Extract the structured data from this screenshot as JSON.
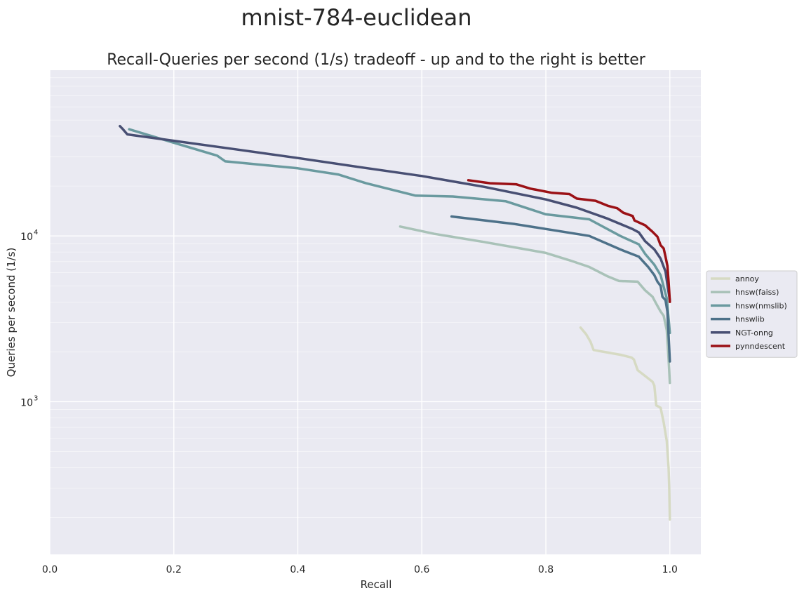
{
  "chart_data": {
    "type": "line",
    "suptitle": "mnist-784-euclidean",
    "title": "Recall-Queries per second (1/s) tradeoff - up and to the right is better",
    "xlabel": "Recall",
    "ylabel": "Queries per second (1/s)",
    "xlim": [
      0.0,
      1.05
    ],
    "ylim": [
      120,
      100000
    ],
    "yscale": "log",
    "xticks": [
      "0.0",
      "0.2",
      "0.4",
      "0.6",
      "0.8",
      "1.0"
    ],
    "yticks": [
      {
        "base": "10",
        "exp": "3",
        "value": 1000
      },
      {
        "base": "10",
        "exp": "4",
        "value": 10000
      }
    ],
    "grid": true,
    "legend_position": "right",
    "series": [
      {
        "name": "annoy",
        "color": "#d6dac3",
        "points": [
          [
            0.856,
            2800
          ],
          [
            0.865,
            2550
          ],
          [
            0.872,
            2300
          ],
          [
            0.877,
            2050
          ],
          [
            0.9,
            1980
          ],
          [
            0.92,
            1920
          ],
          [
            0.938,
            1850
          ],
          [
            0.942,
            1800
          ],
          [
            0.948,
            1550
          ],
          [
            0.96,
            1430
          ],
          [
            0.972,
            1320
          ],
          [
            0.975,
            1250
          ],
          [
            0.978,
            950
          ],
          [
            0.985,
            920
          ],
          [
            0.99,
            750
          ],
          [
            0.995,
            580
          ],
          [
            0.998,
            400
          ],
          [
            0.999,
            300
          ],
          [
            1.0,
            195
          ]
        ]
      },
      {
        "name": "hnsw(faiss)",
        "color": "#a9c2b8",
        "points": [
          [
            0.565,
            11400
          ],
          [
            0.62,
            10300
          ],
          [
            0.7,
            9200
          ],
          [
            0.76,
            8400
          ],
          [
            0.8,
            7900
          ],
          [
            0.84,
            7100
          ],
          [
            0.87,
            6500
          ],
          [
            0.9,
            5700
          ],
          [
            0.918,
            5350
          ],
          [
            0.948,
            5300
          ],
          [
            0.96,
            4700
          ],
          [
            0.972,
            4300
          ],
          [
            0.978,
            3900
          ],
          [
            0.985,
            3500
          ],
          [
            0.99,
            3300
          ],
          [
            0.995,
            2700
          ],
          [
            0.998,
            1800
          ],
          [
            1.0,
            1300
          ]
        ]
      },
      {
        "name": "hnsw(nmslib)",
        "color": "#6a9a9f",
        "points": [
          [
            0.128,
            44000
          ],
          [
            0.2,
            36500
          ],
          [
            0.27,
            30500
          ],
          [
            0.283,
            28200
          ],
          [
            0.4,
            25600
          ],
          [
            0.465,
            23500
          ],
          [
            0.51,
            20800
          ],
          [
            0.59,
            17500
          ],
          [
            0.65,
            17300
          ],
          [
            0.735,
            16200
          ],
          [
            0.8,
            13500
          ],
          [
            0.87,
            12600
          ],
          [
            0.92,
            10000
          ],
          [
            0.95,
            8900
          ],
          [
            0.96,
            7800
          ],
          [
            0.975,
            6700
          ],
          [
            0.985,
            5800
          ],
          [
            0.995,
            4200
          ],
          [
            1.0,
            2600
          ]
        ]
      },
      {
        "name": "hnswlib",
        "color": "#4d7189",
        "points": [
          [
            0.648,
            13100
          ],
          [
            0.75,
            11800
          ],
          [
            0.87,
            10000
          ],
          [
            0.92,
            8300
          ],
          [
            0.95,
            7500
          ],
          [
            0.965,
            6500
          ],
          [
            0.975,
            5800
          ],
          [
            0.98,
            5300
          ],
          [
            0.985,
            5000
          ],
          [
            0.988,
            4300
          ],
          [
            0.993,
            4100
          ],
          [
            0.996,
            3500
          ],
          [
            1.0,
            1750
          ]
        ]
      },
      {
        "name": "NGT-onng",
        "color": "#484f73",
        "points": [
          [
            0.113,
            46000
          ],
          [
            0.118,
            44000
          ],
          [
            0.125,
            41000
          ],
          [
            0.2,
            37500
          ],
          [
            0.3,
            33300
          ],
          [
            0.4,
            29500
          ],
          [
            0.5,
            26000
          ],
          [
            0.6,
            23000
          ],
          [
            0.7,
            19800
          ],
          [
            0.8,
            16600
          ],
          [
            0.85,
            14800
          ],
          [
            0.9,
            12700
          ],
          [
            0.94,
            11000
          ],
          [
            0.95,
            10500
          ],
          [
            0.96,
            9300
          ],
          [
            0.975,
            8300
          ],
          [
            0.985,
            7300
          ],
          [
            0.993,
            6100
          ],
          [
            0.997,
            4800
          ],
          [
            1.0,
            4100
          ]
        ]
      },
      {
        "name": "pynndescent",
        "color": "#9b1116",
        "points": [
          [
            0.675,
            21700
          ],
          [
            0.71,
            20800
          ],
          [
            0.752,
            20500
          ],
          [
            0.775,
            19300
          ],
          [
            0.81,
            18200
          ],
          [
            0.838,
            17900
          ],
          [
            0.85,
            16800
          ],
          [
            0.88,
            16300
          ],
          [
            0.9,
            15200
          ],
          [
            0.915,
            14700
          ],
          [
            0.925,
            13800
          ],
          [
            0.94,
            13200
          ],
          [
            0.943,
            12400
          ],
          [
            0.96,
            11600
          ],
          [
            0.972,
            10600
          ],
          [
            0.98,
            9900
          ],
          [
            0.985,
            8800
          ],
          [
            0.99,
            8400
          ],
          [
            0.993,
            7500
          ],
          [
            0.996,
            6600
          ],
          [
            0.998,
            5300
          ],
          [
            1.0,
            4000
          ]
        ]
      }
    ]
  }
}
